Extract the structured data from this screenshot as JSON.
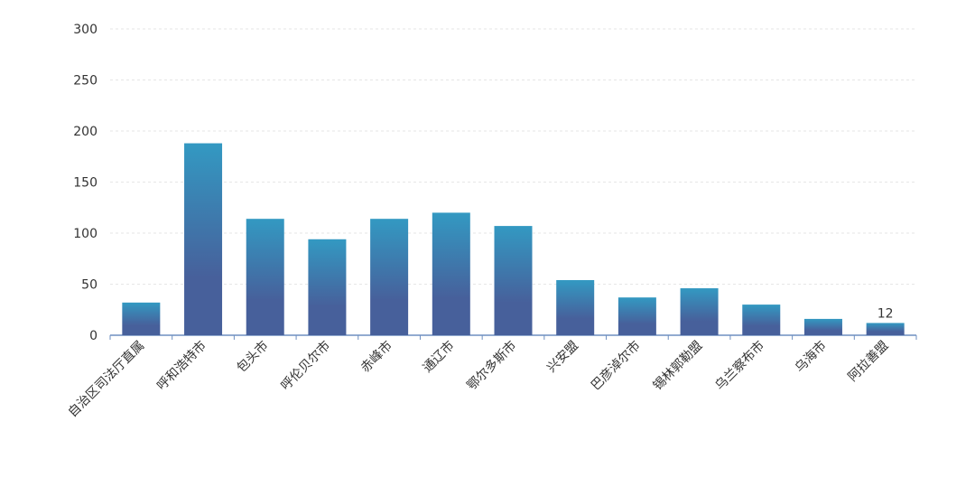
{
  "chart_data": {
    "type": "bar",
    "categories": [
      "自治区司法厅直属",
      "呼和浩特市",
      "包头市",
      "呼伦贝尔市",
      "赤峰市",
      "通辽市",
      "鄂尔多斯市",
      "兴安盟",
      "巴彦淖尔市",
      "锡林郭勒盟",
      "乌兰察布市",
      "乌海市",
      "阿拉善盟"
    ],
    "values": [
      32,
      188,
      114,
      94,
      114,
      120,
      107,
      54,
      37,
      46,
      30,
      16,
      12
    ],
    "gradient": [
      "#3399c2",
      "#47609b"
    ],
    "ylim": [
      0,
      300
    ],
    "yticks": [
      0,
      50,
      100,
      150,
      200,
      250,
      300
    ],
    "grid": true
  }
}
